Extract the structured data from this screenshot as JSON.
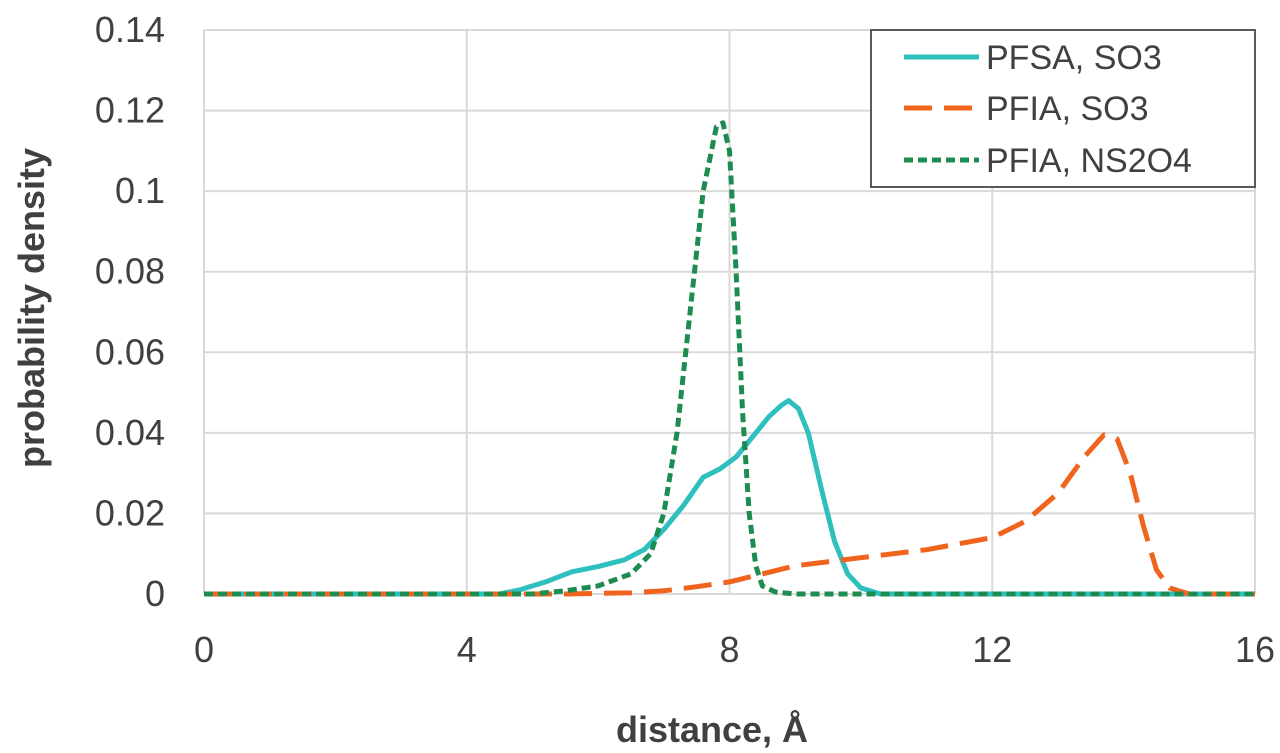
{
  "chart_data": {
    "type": "line",
    "title": "",
    "xlabel": "distance, Å",
    "ylabel": "probability density",
    "xlim": [
      0,
      16
    ],
    "ylim": [
      0,
      0.14
    ],
    "x_ticks": [
      0,
      4,
      8,
      12,
      16
    ],
    "y_ticks": [
      0,
      0.02,
      0.04,
      0.06,
      0.08,
      0.1,
      0.12,
      0.14
    ],
    "x_tick_labels": [
      "0",
      "4",
      "8",
      "12",
      "16"
    ],
    "y_tick_labels": [
      "0",
      "0.02",
      "0.04",
      "0.06",
      "0.08",
      "0.1",
      "0.12",
      "0.14"
    ],
    "grid": true,
    "legend_position": "top-right",
    "series": [
      {
        "name": "PFSA, SO3",
        "color": "#2ebfbf",
        "dash": "solid",
        "points": [
          [
            0,
            0
          ],
          [
            4.5,
            0
          ],
          [
            4.8,
            0.001
          ],
          [
            5.2,
            0.003
          ],
          [
            5.6,
            0.0055
          ],
          [
            6.0,
            0.0068
          ],
          [
            6.4,
            0.0085
          ],
          [
            6.7,
            0.011
          ],
          [
            7.0,
            0.016
          ],
          [
            7.3,
            0.022
          ],
          [
            7.6,
            0.029
          ],
          [
            7.85,
            0.031
          ],
          [
            8.1,
            0.034
          ],
          [
            8.4,
            0.04
          ],
          [
            8.6,
            0.044
          ],
          [
            8.8,
            0.047
          ],
          [
            8.9,
            0.048
          ],
          [
            9.05,
            0.046
          ],
          [
            9.2,
            0.04
          ],
          [
            9.4,
            0.026
          ],
          [
            9.6,
            0.013
          ],
          [
            9.8,
            0.005
          ],
          [
            10.0,
            0.0015
          ],
          [
            10.3,
            0
          ],
          [
            16,
            0
          ]
        ]
      },
      {
        "name": "PFIA, SO3",
        "color": "#f0641e",
        "dash": "long-dash",
        "points": [
          [
            0,
            0
          ],
          [
            5.5,
            0
          ],
          [
            6.5,
            0.0003
          ],
          [
            7.0,
            0.0008
          ],
          [
            7.5,
            0.0018
          ],
          [
            8.0,
            0.003
          ],
          [
            8.5,
            0.005
          ],
          [
            9.0,
            0.007
          ],
          [
            10.0,
            0.009
          ],
          [
            11.0,
            0.011
          ],
          [
            12.0,
            0.014
          ],
          [
            12.5,
            0.018
          ],
          [
            13.0,
            0.025
          ],
          [
            13.4,
            0.034
          ],
          [
            13.7,
            0.0395
          ],
          [
            13.9,
            0.0385
          ],
          [
            14.1,
            0.03
          ],
          [
            14.3,
            0.017
          ],
          [
            14.5,
            0.006
          ],
          [
            14.7,
            0.0015
          ],
          [
            15.0,
            0
          ],
          [
            16,
            0
          ]
        ]
      },
      {
        "name": "PFIA, NS2O4",
        "color": "#1e8c50",
        "dash": "short-dash",
        "points": [
          [
            0,
            0
          ],
          [
            5.0,
            0
          ],
          [
            5.5,
            0.0008
          ],
          [
            6.0,
            0.002
          ],
          [
            6.5,
            0.005
          ],
          [
            6.8,
            0.01
          ],
          [
            7.0,
            0.02
          ],
          [
            7.2,
            0.04
          ],
          [
            7.4,
            0.07
          ],
          [
            7.6,
            0.1
          ],
          [
            7.8,
            0.116
          ],
          [
            7.9,
            0.117
          ],
          [
            8.0,
            0.11
          ],
          [
            8.1,
            0.08
          ],
          [
            8.2,
            0.045
          ],
          [
            8.3,
            0.02
          ],
          [
            8.4,
            0.007
          ],
          [
            8.5,
            0.002
          ],
          [
            8.7,
            0.0005
          ],
          [
            9.0,
            0
          ],
          [
            16,
            0
          ]
        ]
      }
    ]
  }
}
